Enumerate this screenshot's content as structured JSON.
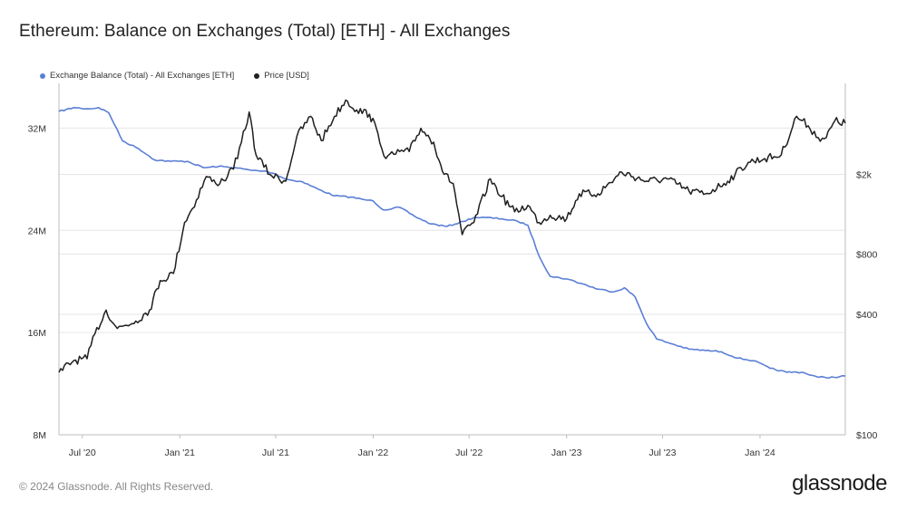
{
  "title": "Ethereum: Balance on Exchanges (Total) [ETH] - All Exchanges",
  "footer": "© 2024 Glassnode. All Rights Reserved.",
  "brand": "glassnode",
  "colors": {
    "balance": "#5b7fd6",
    "price": "#1f1f1f",
    "grid": "#e6e6e6",
    "axis": "#bdbdbd"
  },
  "chart_data": {
    "type": "line",
    "legend_position": "top-left",
    "grid": true,
    "x_ticks": [
      "Jul '20",
      "Jan '21",
      "Jul '21",
      "Jan '22",
      "Jul '22",
      "Jan '23",
      "Jul '23",
      "Jan '24"
    ],
    "y_left_ticks": [
      "8M",
      "16M",
      "24M",
      "32M"
    ],
    "y_right_ticks": [
      "$100",
      "$400",
      "$800",
      "$2k"
    ],
    "ylim_left": [
      8000000,
      35500000
    ],
    "series": [
      {
        "name": "Exchange Balance (Total) - All Exchanges [ETH]",
        "axis": "left",
        "points": [
          [
            "2020-05-18",
            33.3
          ],
          [
            "2020-06-15",
            33.6
          ],
          [
            "2020-07-15",
            33.5
          ],
          [
            "2020-08-01",
            33.6
          ],
          [
            "2020-08-20",
            33.2
          ],
          [
            "2020-09-15",
            31.0
          ],
          [
            "2020-10-15",
            30.4
          ],
          [
            "2020-11-15",
            29.5
          ],
          [
            "2020-12-15",
            29.4
          ],
          [
            "2021-01-15",
            29.4
          ],
          [
            "2021-02-15",
            28.9
          ],
          [
            "2021-03-15",
            29.0
          ],
          [
            "2021-04-15",
            28.9
          ],
          [
            "2021-05-15",
            28.7
          ],
          [
            "2021-06-15",
            28.6
          ],
          [
            "2021-07-01",
            28.4
          ],
          [
            "2021-07-20",
            28.0
          ],
          [
            "2021-08-20",
            27.8
          ],
          [
            "2021-09-20",
            27.2
          ],
          [
            "2021-10-20",
            26.7
          ],
          [
            "2021-11-20",
            26.6
          ],
          [
            "2021-12-15",
            26.4
          ],
          [
            "2022-01-01",
            26.3
          ],
          [
            "2022-01-20",
            25.6
          ],
          [
            "2022-02-20",
            25.8
          ],
          [
            "2022-03-20",
            25.1
          ],
          [
            "2022-04-20",
            24.5
          ],
          [
            "2022-05-20",
            24.3
          ],
          [
            "2022-06-20",
            24.7
          ],
          [
            "2022-07-10",
            25.0
          ],
          [
            "2022-08-01",
            25.0
          ],
          [
            "2022-09-01",
            24.9
          ],
          [
            "2022-10-01",
            24.7
          ],
          [
            "2022-10-20",
            24.4
          ],
          [
            "2022-11-10",
            22.0
          ],
          [
            "2022-12-01",
            20.4
          ],
          [
            "2023-01-01",
            20.2
          ],
          [
            "2023-02-01",
            19.8
          ],
          [
            "2023-03-01",
            19.4
          ],
          [
            "2023-04-01",
            19.2
          ],
          [
            "2023-04-20",
            19.5
          ],
          [
            "2023-05-10",
            18.8
          ],
          [
            "2023-06-01",
            16.7
          ],
          [
            "2023-06-20",
            15.5
          ],
          [
            "2023-07-20",
            15.1
          ],
          [
            "2023-08-20",
            14.7
          ],
          [
            "2023-09-20",
            14.6
          ],
          [
            "2023-10-20",
            14.5
          ],
          [
            "2023-11-20",
            14.0
          ],
          [
            "2023-12-20",
            13.8
          ],
          [
            "2024-01-20",
            13.2
          ],
          [
            "2024-02-20",
            12.9
          ],
          [
            "2024-03-20",
            12.9
          ],
          [
            "2024-04-20",
            12.5
          ],
          [
            "2024-05-20",
            12.5
          ],
          [
            "2024-06-10",
            12.6
          ]
        ]
      },
      {
        "name": "Price [USD]",
        "axis": "right",
        "points": [
          [
            "2020-05-18",
            205
          ],
          [
            "2020-06-15",
            235
          ],
          [
            "2020-07-10",
            240
          ],
          [
            "2020-07-25",
            320
          ],
          [
            "2020-08-15",
            420
          ],
          [
            "2020-09-05",
            340
          ],
          [
            "2020-10-10",
            370
          ],
          [
            "2020-11-05",
            420
          ],
          [
            "2020-11-25",
            590
          ],
          [
            "2020-12-20",
            640
          ],
          [
            "2021-01-10",
            1150
          ],
          [
            "2021-01-25",
            1350
          ],
          [
            "2021-02-20",
            1950
          ],
          [
            "2021-03-10",
            1800
          ],
          [
            "2021-04-01",
            1950
          ],
          [
            "2021-04-20",
            2400
          ],
          [
            "2021-05-12",
            4100
          ],
          [
            "2021-05-25",
            2500
          ],
          [
            "2021-06-20",
            2000
          ],
          [
            "2021-07-20",
            1850
          ],
          [
            "2021-08-10",
            3100
          ],
          [
            "2021-09-05",
            3900
          ],
          [
            "2021-09-25",
            2950
          ],
          [
            "2021-10-20",
            3900
          ],
          [
            "2021-11-10",
            4700
          ],
          [
            "2021-12-01",
            4200
          ],
          [
            "2021-12-25",
            4000
          ],
          [
            "2022-01-10",
            3200
          ],
          [
            "2022-01-25",
            2400
          ],
          [
            "2022-02-20",
            2600
          ],
          [
            "2022-03-10",
            2600
          ],
          [
            "2022-04-01",
            3400
          ],
          [
            "2022-04-25",
            2900
          ],
          [
            "2022-05-15",
            2000
          ],
          [
            "2022-06-01",
            1800
          ],
          [
            "2022-06-18",
            1000
          ],
          [
            "2022-07-10",
            1150
          ],
          [
            "2022-08-10",
            1900
          ],
          [
            "2022-09-01",
            1550
          ],
          [
            "2022-09-25",
            1300
          ],
          [
            "2022-10-20",
            1400
          ],
          [
            "2022-11-10",
            1150
          ],
          [
            "2022-12-01",
            1250
          ],
          [
            "2023-01-01",
            1200
          ],
          [
            "2023-01-25",
            1600
          ],
          [
            "2023-03-01",
            1600
          ],
          [
            "2023-04-15",
            2050
          ],
          [
            "2023-06-01",
            1850
          ],
          [
            "2023-07-10",
            1900
          ],
          [
            "2023-08-20",
            1650
          ],
          [
            "2023-09-20",
            1600
          ],
          [
            "2023-10-25",
            1800
          ],
          [
            "2023-11-15",
            2000
          ],
          [
            "2023-12-10",
            2300
          ],
          [
            "2024-01-10",
            2400
          ],
          [
            "2024-02-10",
            2500
          ],
          [
            "2024-03-10",
            3900
          ],
          [
            "2024-04-01",
            3500
          ],
          [
            "2024-04-20",
            3050
          ],
          [
            "2024-05-05",
            3050
          ],
          [
            "2024-05-21",
            3700
          ],
          [
            "2024-06-10",
            3600
          ]
        ]
      }
    ]
  }
}
